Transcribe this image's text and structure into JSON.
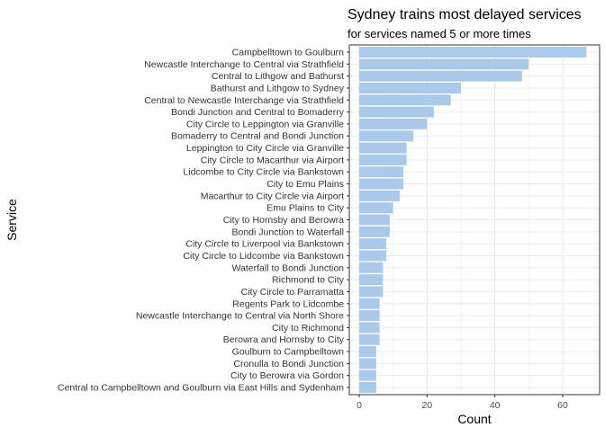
{
  "chart_data": {
    "type": "bar",
    "orientation": "horizontal",
    "title": "Sydney trains most delayed services",
    "subtitle": "for services named 5 or more times",
    "xlabel": "Count",
    "ylabel": "Service",
    "xlim": [
      0,
      70
    ],
    "xticks": [
      0,
      20,
      40,
      60
    ],
    "grid": true,
    "bar_color": "#abc9ea",
    "categories": [
      "Campbelltown to Goulburn",
      "Newcastle Interchange to Central via Strathfield",
      "Central to Lithgow and Bathurst",
      "Bathurst and Lithgow to Sydney",
      "Central to Newcastle Interchange via Strathfield",
      "Bondi Junction and Central to Bomaderry",
      "City Circle to Leppington via Granville",
      "Bomaderry to Central and Bondi Junction",
      "Leppington to City Circle via Granville",
      "City Circle to Macarthur via Airport",
      "Lidcombe to City Circle via Bankstown",
      "City to Emu Plains",
      "Macarthur to City Circle via Airport",
      "Emu Plains to City",
      "City to Hornsby and Berowra",
      "Bondi Junction to Waterfall",
      "City Circle to Liverpool via Bankstown",
      "City Circle to Lidcombe via Bankstown",
      "Waterfall to Bondi Junction",
      "Richmond to City",
      "City Circle to Parramatta",
      "Regents Park to Lidcombe",
      "Newcastle Interchange to Central via North Shore",
      "City to Richmond",
      "Berowra and Hornsby to City",
      "Goulburn to Campbelltown",
      "Cronulla to Bondi Junction",
      "City to Berowra via Gordon",
      "Central to Campbelltown and Goulburn via East Hills and Sydenham"
    ],
    "values": [
      67,
      50,
      48,
      30,
      27,
      22,
      20,
      16,
      14,
      14,
      13,
      13,
      12,
      10,
      9,
      9,
      8,
      8,
      7,
      7,
      7,
      6,
      6,
      6,
      6,
      5,
      5,
      5,
      5
    ]
  }
}
